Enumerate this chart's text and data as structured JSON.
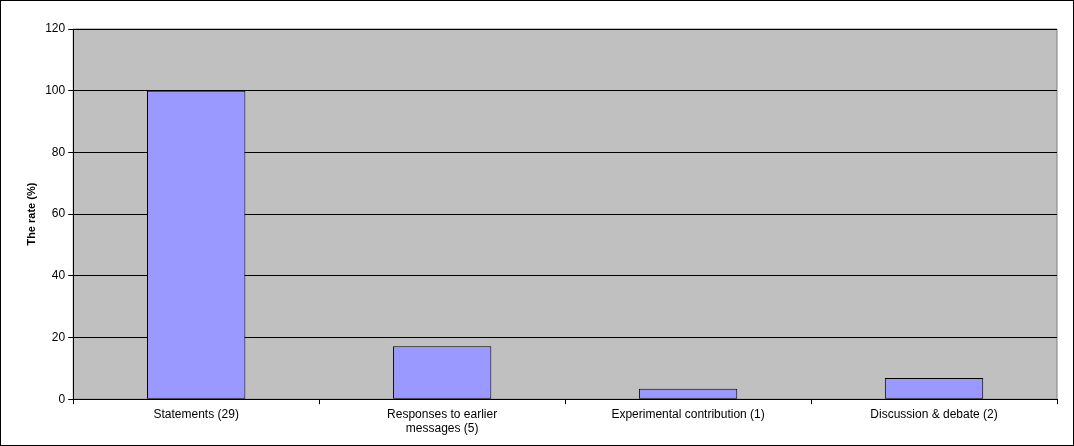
{
  "chart_data": {
    "type": "bar",
    "ylabel": "The rate (%)",
    "categories": [
      "Statements (29)",
      "Responses to earlier messages (5)",
      "Experimental contribution (1)",
      "Discussion & debate (2)"
    ],
    "values": [
      100,
      17.2,
      3.4,
      6.9
    ],
    "color": "#9999ff",
    "ylim": [
      0,
      120
    ],
    "yticks": [
      0,
      20,
      40,
      60,
      80,
      100,
      120
    ],
    "grid": "y",
    "legend": false
  }
}
